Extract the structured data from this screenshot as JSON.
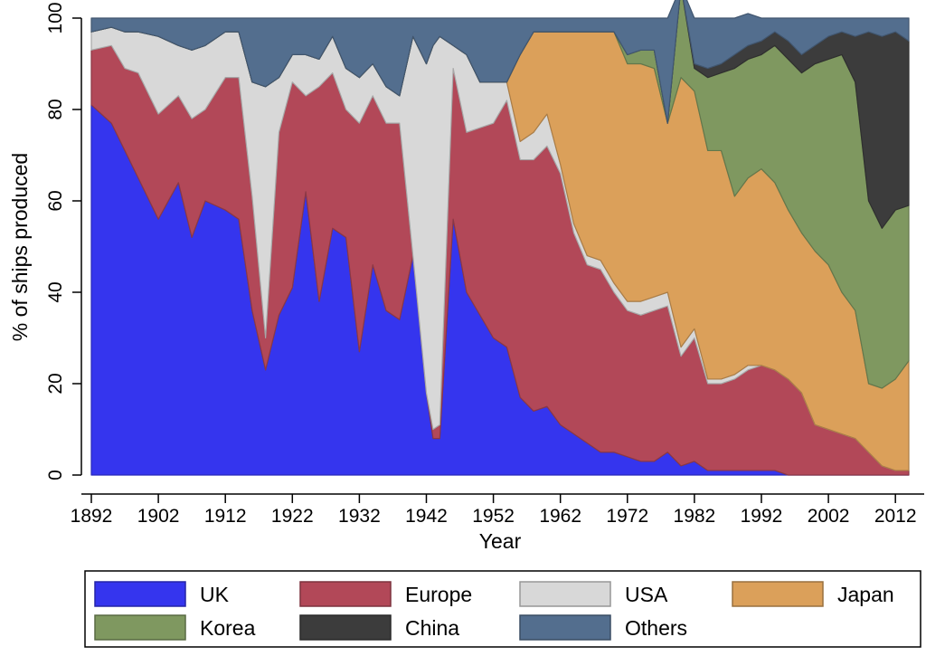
{
  "chart_data": {
    "type": "area",
    "title": "",
    "xlabel": "Year",
    "ylabel": "% of ships produced",
    "xlim": [
      1892,
      2014
    ],
    "ylim": [
      0,
      100
    ],
    "xticks": [
      "1892",
      "1902",
      "1912",
      "1922",
      "1932",
      "1942",
      "1952",
      "1962",
      "1972",
      "1982",
      "1992",
      "2002",
      "2012"
    ],
    "yticks": [
      "0",
      "20",
      "40",
      "60",
      "80",
      "100"
    ],
    "grid": false,
    "stacked": true,
    "legend_position": "bottom",
    "x": [
      1892,
      1895,
      1897,
      1899,
      1902,
      1905,
      1907,
      1909,
      1912,
      1914,
      1916,
      1918,
      1920,
      1922,
      1924,
      1926,
      1928,
      1930,
      1932,
      1934,
      1936,
      1938,
      1940,
      1942,
      1943,
      1944,
      1946,
      1948,
      1950,
      1952,
      1954,
      1956,
      1958,
      1960,
      1962,
      1964,
      1966,
      1968,
      1970,
      1972,
      1974,
      1976,
      1978,
      1980,
      1982,
      1984,
      1986,
      1988,
      1990,
      1992,
      1994,
      1996,
      1998,
      2000,
      2002,
      2004,
      2006,
      2008,
      2010,
      2012,
      2014
    ],
    "series": [
      {
        "name": "UK",
        "color": "#3535ee",
        "values": [
          81,
          77,
          71,
          65,
          56,
          64,
          52,
          60,
          58,
          56,
          36,
          23,
          35,
          41,
          62,
          38,
          54,
          52,
          27,
          46,
          36,
          34,
          48,
          18,
          8,
          8,
          56,
          40,
          35,
          30,
          28,
          17,
          14,
          15,
          11,
          9,
          7,
          5,
          5,
          4,
          3,
          3,
          5,
          2,
          3,
          1,
          1,
          1,
          1,
          1,
          1,
          0,
          0,
          0,
          0,
          0,
          0,
          0,
          0,
          0,
          0
        ]
      },
      {
        "name": "Europe",
        "color": "#b24858",
        "values": [
          12,
          17,
          18,
          23,
          23,
          19,
          26,
          20,
          29,
          31,
          25,
          7,
          40,
          45,
          21,
          47,
          34,
          28,
          50,
          37,
          41,
          43,
          0,
          0,
          2,
          3,
          33,
          35,
          41,
          47,
          54,
          52,
          55,
          57,
          55,
          44,
          39,
          40,
          35,
          32,
          32,
          33,
          32,
          24,
          27,
          19,
          19,
          20,
          22,
          23,
          22,
          21,
          18,
          11,
          10,
          9,
          8,
          5,
          2,
          1,
          1
        ]
      },
      {
        "name": "USA",
        "color": "#d8d8d8",
        "values": [
          4,
          4,
          8,
          9,
          17,
          11,
          15,
          14,
          10,
          10,
          25,
          55,
          12,
          6,
          9,
          6,
          8,
          9,
          10,
          7,
          8,
          6,
          48,
          72,
          84,
          85,
          5,
          17,
          10,
          9,
          4,
          4,
          6,
          7,
          2,
          2,
          2,
          2,
          2,
          2,
          3,
          3,
          3,
          2,
          2,
          1,
          1,
          1,
          1,
          0,
          0,
          0,
          0,
          0,
          0,
          0,
          0,
          0,
          0,
          0,
          0
        ]
      },
      {
        "name": "Japan",
        "color": "#dba05a",
        "values": [
          0,
          0,
          0,
          0,
          0,
          0,
          0,
          0,
          0,
          0,
          0,
          0,
          0,
          0,
          0,
          0,
          0,
          0,
          0,
          0,
          0,
          0,
          0,
          0,
          0,
          0,
          0,
          0,
          0,
          0,
          0,
          19,
          22,
          18,
          29,
          42,
          49,
          50,
          55,
          52,
          52,
          50,
          37,
          59,
          52,
          50,
          50,
          39,
          41,
          43,
          41,
          37,
          35,
          38,
          36,
          31,
          28,
          15,
          17,
          20,
          24
        ]
      },
      {
        "name": "Korea",
        "color": "#7f9860",
        "values": [
          0,
          0,
          0,
          0,
          0,
          0,
          0,
          0,
          0,
          0,
          0,
          0,
          0,
          0,
          0,
          0,
          0,
          0,
          0,
          0,
          0,
          0,
          0,
          0,
          0,
          0,
          0,
          0,
          0,
          0,
          0,
          0,
          0,
          0,
          0,
          0,
          0,
          0,
          0,
          2,
          3,
          4,
          0,
          20,
          5,
          16,
          17,
          28,
          26,
          25,
          30,
          33,
          35,
          41,
          45,
          52,
          50,
          40,
          35,
          37,
          34
        ]
      },
      {
        "name": "China",
        "color": "#3c3c3c",
        "values": [
          0,
          0,
          0,
          0,
          0,
          0,
          0,
          0,
          0,
          0,
          0,
          0,
          0,
          0,
          0,
          0,
          0,
          0,
          0,
          0,
          0,
          0,
          0,
          0,
          0,
          0,
          0,
          0,
          0,
          0,
          0,
          0,
          0,
          0,
          0,
          0,
          0,
          0,
          0,
          0,
          0,
          0,
          0,
          0,
          1,
          2,
          2,
          3,
          3,
          3,
          3,
          4,
          4,
          4,
          5,
          5,
          10,
          37,
          42,
          39,
          36
        ]
      },
      {
        "name": "Others",
        "color": "#536e8e",
        "values": [
          3,
          2,
          3,
          3,
          4,
          6,
          7,
          6,
          3,
          3,
          14,
          15,
          13,
          8,
          8,
          9,
          4,
          11,
          13,
          10,
          15,
          17,
          4,
          10,
          6,
          4,
          6,
          8,
          14,
          14,
          14,
          8,
          3,
          3,
          3,
          3,
          3,
          3,
          3,
          8,
          7,
          7,
          23,
          0,
          10,
          11,
          10,
          8,
          7,
          5,
          3,
          5,
          8,
          6,
          4,
          3,
          4,
          3,
          4,
          3,
          5
        ]
      }
    ]
  }
}
